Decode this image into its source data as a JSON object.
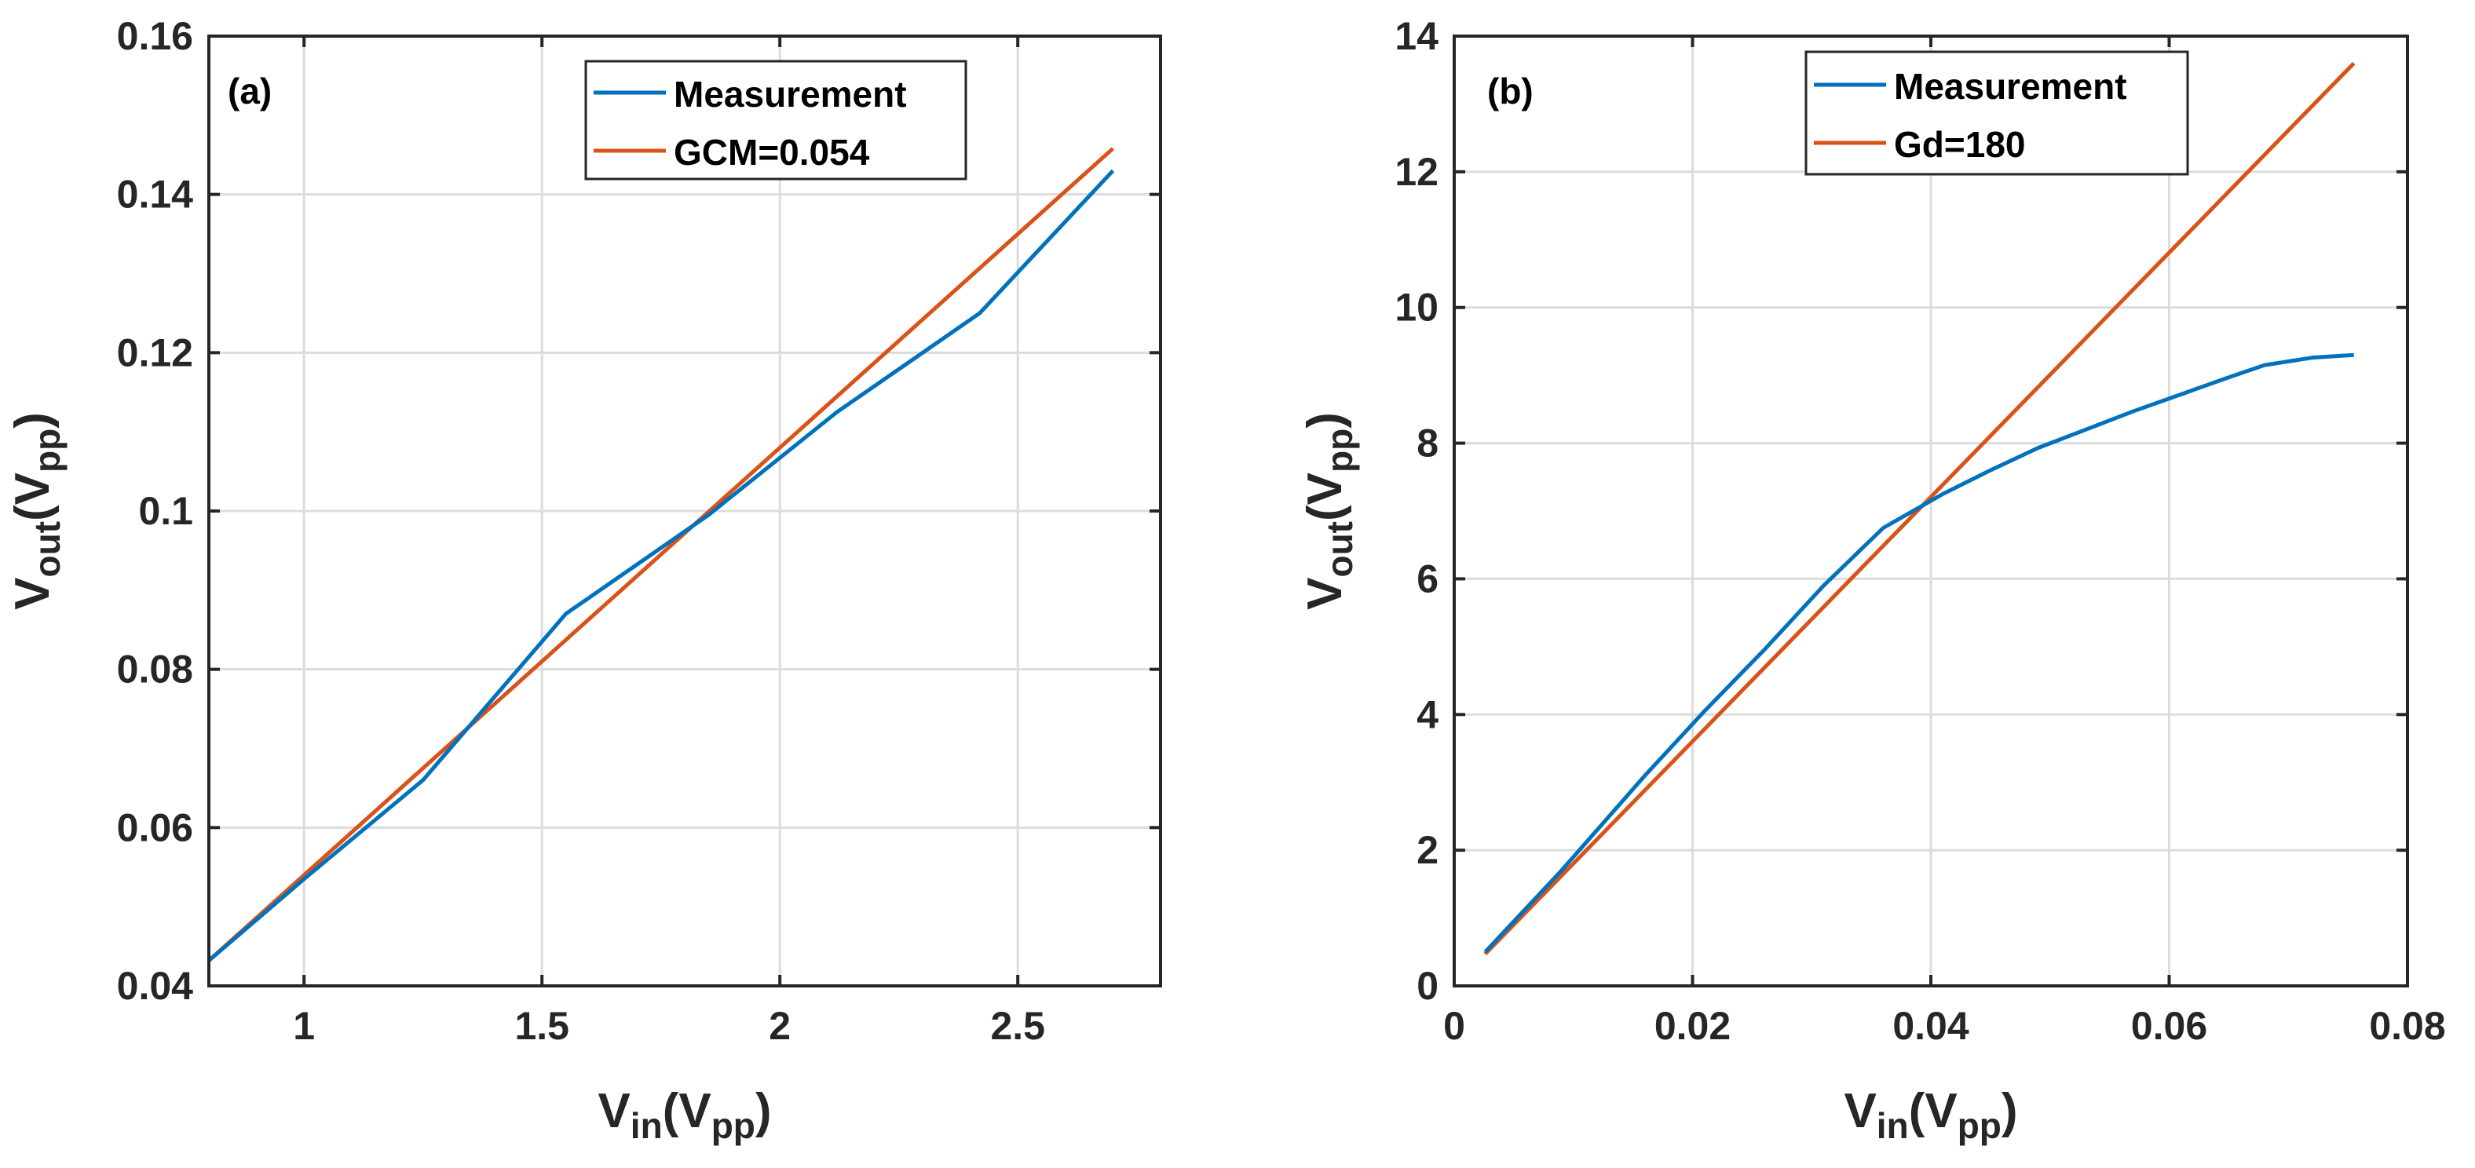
{
  "colors": {
    "measurement": "#0072BD",
    "fit": "#D95319",
    "axis": "#262626",
    "grid": "#dcdcdc"
  },
  "chart_data": [
    {
      "type": "line",
      "panel_label": "(a)",
      "xlabel_main": "V",
      "xlabel_sub": "in",
      "xlabel_paren_open": "(V",
      "xlabel_paren_sub": "pp",
      "xlabel_paren_close": ")",
      "ylabel_main": "V",
      "ylabel_sub": "out",
      "ylabel_paren_open": "(V",
      "ylabel_paren_sub": "pp",
      "ylabel_paren_close": ")",
      "xlim": [
        0.8,
        2.8
      ],
      "ylim": [
        0.04,
        0.16
      ],
      "xticks": [
        1,
        1.5,
        2,
        2.5
      ],
      "xtick_labels": [
        "1",
        "1.5",
        "2",
        "2.5"
      ],
      "yticks": [
        0.04,
        0.06,
        0.08,
        0.1,
        0.12,
        0.14,
        0.16
      ],
      "ytick_labels": [
        "0.04",
        "0.06",
        "0.08",
        "0.1",
        "0.12",
        "0.14",
        "0.16"
      ],
      "grid": true,
      "legend_position": "top-right",
      "series": [
        {
          "name": "Measurement",
          "color": "#0072BD",
          "x": [
            0.8,
            1.0,
            1.25,
            1.55,
            1.85,
            2.12,
            2.42,
            2.7
          ],
          "y": [
            0.0432,
            0.0535,
            0.066,
            0.087,
            0.0995,
            0.1125,
            0.125,
            0.143
          ]
        },
        {
          "name": "GCM=0.054",
          "color": "#D95319",
          "x": [
            0.8,
            2.7
          ],
          "y": [
            0.0432,
            0.1458
          ]
        }
      ]
    },
    {
      "type": "line",
      "panel_label": "(b)",
      "xlabel_main": "V",
      "xlabel_sub": "in",
      "xlabel_paren_open": "(V",
      "xlabel_paren_sub": "pp",
      "xlabel_paren_close": ")",
      "ylabel_main": "V",
      "ylabel_sub": "out",
      "ylabel_paren_open": "(V",
      "ylabel_paren_sub": "pp",
      "ylabel_paren_close": ")",
      "xlim": [
        0,
        0.08
      ],
      "ylim": [
        0,
        14
      ],
      "xticks": [
        0,
        0.02,
        0.04,
        0.06,
        0.08
      ],
      "xtick_labels": [
        "0",
        "0.02",
        "0.04",
        "0.06",
        "0.08"
      ],
      "yticks": [
        0,
        2,
        4,
        6,
        8,
        10,
        12,
        14
      ],
      "ytick_labels": [
        "0",
        "2",
        "4",
        "6",
        "8",
        "10",
        "12",
        "14"
      ],
      "grid": true,
      "legend_position": "top-center",
      "series": [
        {
          "name": "Measurement",
          "color": "#0072BD",
          "x": [
            0.0026,
            0.009,
            0.016,
            0.021,
            0.026,
            0.031,
            0.036,
            0.041,
            0.045,
            0.049,
            0.053,
            0.057,
            0.061,
            0.065,
            0.068,
            0.072,
            0.0755
          ],
          "y": [
            0.5,
            1.7,
            3.1,
            4.05,
            4.95,
            5.9,
            6.75,
            7.25,
            7.6,
            7.93,
            8.2,
            8.47,
            8.72,
            8.97,
            9.15,
            9.26,
            9.3
          ]
        },
        {
          "name": "Gd=180",
          "color": "#D95319",
          "x": [
            0.0026,
            0.0755
          ],
          "y": [
            0.47,
            13.6
          ]
        }
      ]
    }
  ]
}
